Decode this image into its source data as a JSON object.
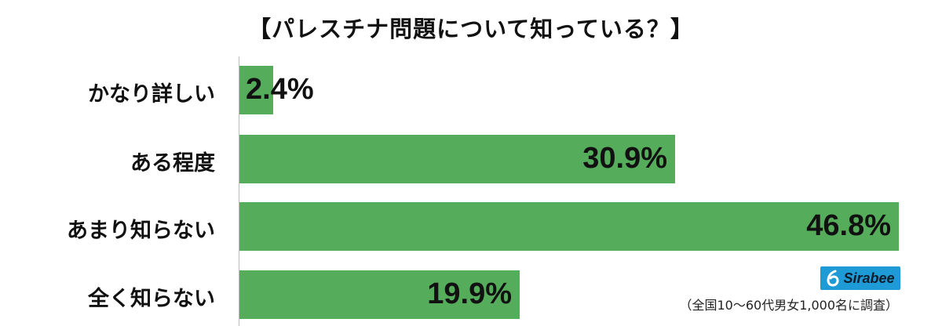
{
  "chart_data": {
    "type": "bar",
    "orientation": "horizontal",
    "title": "【パレスチナ問題について知っている？】",
    "categories": [
      "かなり詳しい",
      "ある程度",
      "あまり知らない",
      "全く知らない"
    ],
    "values": [
      2.4,
      30.9,
      46.8,
      19.9
    ],
    "value_labels": [
      "2.4%",
      "30.9%",
      "46.8%",
      "19.9%"
    ],
    "unit": "%",
    "bar_color": "#55ad5c",
    "grid": false,
    "legend": "none"
  },
  "logo": {
    "text": "Sirabee",
    "color": "#1e9bd7"
  },
  "source_note": "（全国10〜60代男女1,000名に調査）"
}
